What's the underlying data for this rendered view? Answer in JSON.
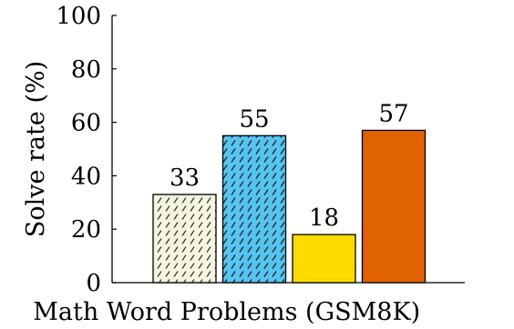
{
  "chart_data": {
    "type": "bar",
    "title": "",
    "xlabel": "Math Word Problems (GSM8K)",
    "ylabel": "Solve rate (%)",
    "ylim": [
      0,
      100
    ],
    "yticks": [
      0,
      20,
      40,
      60,
      80,
      100
    ],
    "categories": [
      "",
      "",
      "",
      ""
    ],
    "values": [
      33,
      55,
      18,
      57
    ],
    "data_labels": [
      "33",
      "55",
      "18",
      "57"
    ],
    "legend": "none",
    "grid": false,
    "bars": [
      {
        "fill": "#f4f4df",
        "hatch": "dashes",
        "hatch_color": "#333333"
      },
      {
        "fill": "#56c3f0",
        "hatch": "dashes",
        "hatch_color": "#1a1a1a"
      },
      {
        "fill": "#ffdb00",
        "hatch": "none",
        "hatch_color": ""
      },
      {
        "fill": "#e06200",
        "hatch": "none",
        "hatch_color": ""
      }
    ]
  }
}
